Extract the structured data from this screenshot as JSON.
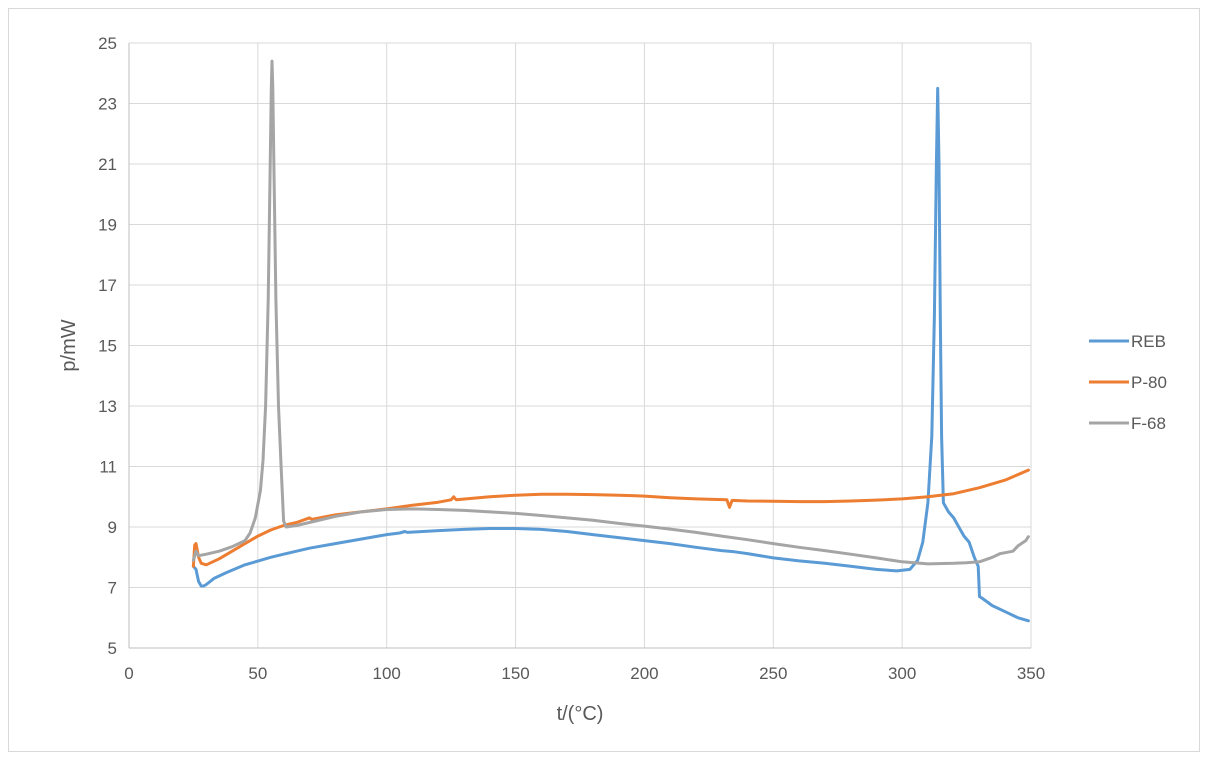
{
  "chart_data": {
    "type": "line",
    "title": "",
    "xlabel": "t/(°C)",
    "ylabel": "p/mW",
    "xlim": [
      0,
      350
    ],
    "ylim": [
      5,
      25
    ],
    "xticks": [
      0,
      50,
      100,
      150,
      200,
      250,
      300,
      350
    ],
    "yticks": [
      5,
      7,
      9,
      11,
      13,
      15,
      17,
      19,
      21,
      23,
      25
    ],
    "grid": true,
    "legend_position": "right",
    "series": [
      {
        "name": "REB",
        "color": "#5b9bd5",
        "points": [
          [
            25,
            7.7
          ],
          [
            26,
            7.6
          ],
          [
            27,
            7.2
          ],
          [
            28,
            7.05
          ],
          [
            29,
            7.05
          ],
          [
            30,
            7.1
          ],
          [
            33,
            7.3
          ],
          [
            38,
            7.5
          ],
          [
            45,
            7.75
          ],
          [
            55,
            8.0
          ],
          [
            60,
            8.1
          ],
          [
            70,
            8.3
          ],
          [
            80,
            8.45
          ],
          [
            90,
            8.6
          ],
          [
            100,
            8.75
          ],
          [
            105,
            8.8
          ],
          [
            107,
            8.85
          ],
          [
            108,
            8.82
          ],
          [
            120,
            8.88
          ],
          [
            130,
            8.92
          ],
          [
            140,
            8.95
          ],
          [
            150,
            8.95
          ],
          [
            160,
            8.92
          ],
          [
            170,
            8.85
          ],
          [
            180,
            8.75
          ],
          [
            190,
            8.65
          ],
          [
            200,
            8.55
          ],
          [
            210,
            8.45
          ],
          [
            220,
            8.33
          ],
          [
            230,
            8.22
          ],
          [
            235,
            8.18
          ],
          [
            240,
            8.12
          ],
          [
            250,
            7.98
          ],
          [
            260,
            7.88
          ],
          [
            270,
            7.8
          ],
          [
            280,
            7.7
          ],
          [
            290,
            7.6
          ],
          [
            298,
            7.55
          ],
          [
            303,
            7.6
          ],
          [
            306,
            7.9
          ],
          [
            308,
            8.5
          ],
          [
            310,
            9.8
          ],
          [
            311.5,
            12.0
          ],
          [
            312.5,
            16.0
          ],
          [
            313.3,
            21.0
          ],
          [
            313.8,
            23.5
          ],
          [
            314.3,
            21.0
          ],
          [
            314.8,
            16.0
          ],
          [
            315.3,
            12.0
          ],
          [
            316,
            9.8
          ],
          [
            318,
            9.5
          ],
          [
            320,
            9.3
          ],
          [
            322,
            9.0
          ],
          [
            324,
            8.7
          ],
          [
            326,
            8.5
          ],
          [
            328,
            8.0
          ],
          [
            329.5,
            7.7
          ],
          [
            330,
            6.7
          ],
          [
            331,
            6.65
          ],
          [
            335,
            6.4
          ],
          [
            340,
            6.2
          ],
          [
            345,
            6.0
          ],
          [
            349,
            5.9
          ]
        ]
      },
      {
        "name": "P-80",
        "color": "#ed7d31",
        "points": [
          [
            25,
            7.7
          ],
          [
            25.5,
            8.4
          ],
          [
            26,
            8.45
          ],
          [
            27,
            8.0
          ],
          [
            28,
            7.8
          ],
          [
            30,
            7.75
          ],
          [
            35,
            7.95
          ],
          [
            40,
            8.2
          ],
          [
            45,
            8.45
          ],
          [
            50,
            8.7
          ],
          [
            55,
            8.9
          ],
          [
            60,
            9.05
          ],
          [
            65,
            9.15
          ],
          [
            70,
            9.3
          ],
          [
            71,
            9.25
          ],
          [
            80,
            9.4
          ],
          [
            90,
            9.5
          ],
          [
            100,
            9.6
          ],
          [
            110,
            9.72
          ],
          [
            120,
            9.82
          ],
          [
            125,
            9.9
          ],
          [
            126,
            10.0
          ],
          [
            127,
            9.9
          ],
          [
            140,
            10.0
          ],
          [
            150,
            10.05
          ],
          [
            160,
            10.08
          ],
          [
            170,
            10.08
          ],
          [
            180,
            10.07
          ],
          [
            190,
            10.05
          ],
          [
            200,
            10.02
          ],
          [
            210,
            9.97
          ],
          [
            220,
            9.93
          ],
          [
            232,
            9.9
          ],
          [
            233,
            9.65
          ],
          [
            234,
            9.88
          ],
          [
            240,
            9.86
          ],
          [
            250,
            9.85
          ],
          [
            260,
            9.84
          ],
          [
            270,
            9.84
          ],
          [
            280,
            9.86
          ],
          [
            290,
            9.89
          ],
          [
            300,
            9.93
          ],
          [
            310,
            10.0
          ],
          [
            320,
            10.1
          ],
          [
            330,
            10.3
          ],
          [
            340,
            10.55
          ],
          [
            349,
            10.88
          ]
        ]
      },
      {
        "name": "F-68",
        "color": "#a5a5a5",
        "points": [
          [
            25,
            7.9
          ],
          [
            26,
            8.2
          ],
          [
            27,
            8.05
          ],
          [
            30,
            8.1
          ],
          [
            35,
            8.2
          ],
          [
            40,
            8.35
          ],
          [
            45,
            8.55
          ],
          [
            47,
            8.8
          ],
          [
            49,
            9.3
          ],
          [
            51,
            10.2
          ],
          [
            52,
            11.2
          ],
          [
            53,
            13.0
          ],
          [
            54,
            16.5
          ],
          [
            54.7,
            20.5
          ],
          [
            55.2,
            23.5
          ],
          [
            55.5,
            24.4
          ],
          [
            55.8,
            23.5
          ],
          [
            56.3,
            20.5
          ],
          [
            57,
            16.5
          ],
          [
            58,
            13.0
          ],
          [
            59,
            11.0
          ],
          [
            60,
            9.2
          ],
          [
            61,
            9.0
          ],
          [
            65,
            9.05
          ],
          [
            70,
            9.15
          ],
          [
            80,
            9.35
          ],
          [
            90,
            9.5
          ],
          [
            100,
            9.58
          ],
          [
            110,
            9.6
          ],
          [
            120,
            9.58
          ],
          [
            130,
            9.55
          ],
          [
            140,
            9.5
          ],
          [
            150,
            9.45
          ],
          [
            160,
            9.38
          ],
          [
            170,
            9.3
          ],
          [
            180,
            9.22
          ],
          [
            190,
            9.12
          ],
          [
            200,
            9.03
          ],
          [
            210,
            8.93
          ],
          [
            220,
            8.82
          ],
          [
            230,
            8.7
          ],
          [
            240,
            8.58
          ],
          [
            250,
            8.45
          ],
          [
            260,
            8.33
          ],
          [
            270,
            8.22
          ],
          [
            280,
            8.1
          ],
          [
            290,
            7.98
          ],
          [
            300,
            7.85
          ],
          [
            310,
            7.78
          ],
          [
            320,
            7.8
          ],
          [
            325,
            7.82
          ],
          [
            330,
            7.85
          ],
          [
            335,
            8.0
          ],
          [
            338,
            8.12
          ],
          [
            340,
            8.15
          ],
          [
            343,
            8.2
          ],
          [
            345,
            8.38
          ],
          [
            348,
            8.55
          ],
          [
            349,
            8.68
          ]
        ]
      }
    ]
  }
}
